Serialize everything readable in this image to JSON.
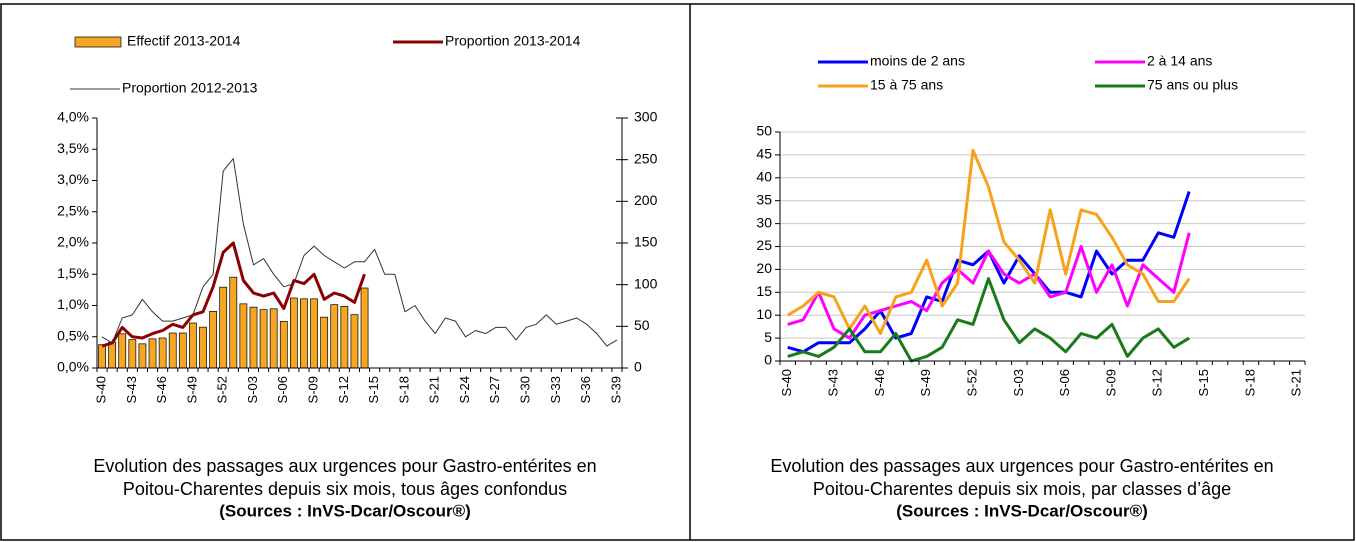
{
  "chart_data": [
    {
      "type": "combo",
      "categories": [
        "S-40",
        null,
        null,
        "S-43",
        null,
        null,
        "S-46",
        null,
        null,
        "S-49",
        null,
        null,
        "S-52",
        null,
        null,
        "S-03",
        null,
        null,
        "S-06",
        null,
        null,
        "S-09",
        null,
        null,
        "S-12",
        null,
        null,
        "S-15",
        null,
        null,
        "S-18",
        null,
        null,
        "S-21",
        null,
        null,
        "S-24",
        null,
        null,
        "S-27",
        null,
        null,
        "S-30",
        null,
        null,
        "S-33",
        null,
        null,
        "S-36",
        null,
        null,
        "S-39"
      ],
      "series": [
        {
          "name": "Effectif 2013-2014",
          "type": "bar",
          "axis": "y2",
          "color": "#f5a623",
          "values": [
            28,
            31,
            41,
            34,
            29,
            35,
            36,
            42,
            42,
            54,
            49,
            68,
            97,
            109,
            77,
            73,
            70,
            71,
            56,
            84,
            83,
            83,
            61,
            76,
            74,
            64,
            96,
            null,
            null,
            null,
            null,
            null,
            null,
            null,
            null,
            null,
            null,
            null,
            null,
            null,
            null,
            null,
            null,
            null,
            null,
            null,
            null,
            null,
            null,
            null,
            null,
            null
          ]
        },
        {
          "name": "Proportion 2013-2014",
          "type": "line",
          "color": "#8b0000",
          "values": [
            0.35,
            0.4,
            0.65,
            0.5,
            0.48,
            0.55,
            0.6,
            0.7,
            0.65,
            0.85,
            0.9,
            1.3,
            1.85,
            2.0,
            1.4,
            1.2,
            1.15,
            1.2,
            0.95,
            1.4,
            1.35,
            1.5,
            1.1,
            1.2,
            1.15,
            1.05,
            1.5,
            null,
            null,
            null,
            null,
            null,
            null,
            null,
            null,
            null,
            null,
            null,
            null,
            null,
            null,
            null,
            null,
            null,
            null,
            null,
            null,
            null,
            null,
            null,
            null,
            null
          ]
        },
        {
          "name": "Proportion 2012-2013",
          "type": "line",
          "color": "#333333",
          "values": [
            0.5,
            0.4,
            0.8,
            0.85,
            1.1,
            0.9,
            0.75,
            0.75,
            0.8,
            0.85,
            1.3,
            1.5,
            3.15,
            3.35,
            2.3,
            1.65,
            1.75,
            1.5,
            1.3,
            1.35,
            1.8,
            1.95,
            1.8,
            1.7,
            1.6,
            1.7,
            1.7,
            1.9,
            1.5,
            1.5,
            0.9,
            1.0,
            0.75,
            0.55,
            0.8,
            0.75,
            0.5,
            0.6,
            0.55,
            0.65,
            0.65,
            0.45,
            0.65,
            0.7,
            0.85,
            0.7,
            0.75,
            0.8,
            0.7,
            0.55,
            0.35,
            0.45
          ]
        }
      ],
      "ylim": [
        0,
        4
      ],
      "yticks": [
        {
          "value": 0,
          "label": "0,0%"
        },
        {
          "value": 0.5,
          "label": "0,5%"
        },
        {
          "value": 1,
          "label": "1,0%"
        },
        {
          "value": 1.5,
          "label": "1,5%"
        },
        {
          "value": 2,
          "label": "2,0%"
        },
        {
          "value": 2.5,
          "label": "2,5%"
        },
        {
          "value": 3,
          "label": "3,0%"
        },
        {
          "value": 3.5,
          "label": "3,5%"
        },
        {
          "value": 4,
          "label": "4,0%"
        }
      ],
      "y2lim": [
        0,
        300
      ],
      "y2ticks": [
        0,
        50,
        100,
        150,
        200,
        250,
        300
      ],
      "grid": false,
      "caption": [
        "Evolution des passages aux urgences pour Gastro-entérites en",
        "Poitou-Charentes depuis six mois, tous âges confondus"
      ],
      "source": "(Sources : InVS-Dcar/Oscour®)"
    },
    {
      "type": "line",
      "categories": [
        "S-40",
        null,
        null,
        "S-43",
        null,
        null,
        "S-46",
        null,
        null,
        "S-49",
        null,
        null,
        "S-52",
        null,
        null,
        "S-03",
        null,
        null,
        "S-06",
        null,
        null,
        "S-09",
        null,
        null,
        "S-12",
        null,
        null,
        "S-15",
        null,
        null,
        "S-18",
        null,
        null,
        "S-21"
      ],
      "series": [
        {
          "name": "moins de 2 ans",
          "color": "#0000ff",
          "values": [
            3,
            2,
            4,
            4,
            4,
            7,
            11,
            5,
            6,
            14,
            13,
            22,
            21,
            24,
            17,
            23,
            19,
            15,
            15,
            14,
            24,
            19,
            22,
            22,
            28,
            27,
            37,
            null,
            null,
            null,
            null,
            null,
            null,
            null
          ]
        },
        {
          "name": "2 à 14 ans",
          "color": "#ff00ff",
          "values": [
            8,
            9,
            15,
            7,
            5,
            10,
            11,
            12,
            13,
            11,
            17,
            20,
            17,
            24,
            19,
            17,
            19,
            14,
            15,
            25,
            15,
            21,
            12,
            21,
            18,
            15,
            28,
            null,
            null,
            null,
            null,
            null,
            null,
            null
          ]
        },
        {
          "name": "15 à 75 ans",
          "color": "#f7a21b",
          "values": [
            10,
            12,
            15,
            14,
            7,
            12,
            6,
            14,
            15,
            22,
            12,
            17,
            46,
            38,
            26,
            22,
            17,
            33,
            19,
            33,
            32,
            27,
            21,
            19,
            13,
            13,
            18,
            null,
            null,
            null,
            null,
            null,
            null,
            null
          ]
        },
        {
          "name": "75 ans ou plus",
          "color": "#1a7a1a",
          "values": [
            1,
            2,
            1,
            3,
            7,
            2,
            2,
            6,
            0,
            1,
            3,
            9,
            8,
            18,
            9,
            4,
            7,
            5,
            2,
            6,
            5,
            8,
            1,
            5,
            7,
            3,
            5,
            null,
            null,
            null,
            null,
            null,
            null,
            null
          ]
        }
      ],
      "ylim": [
        0,
        50
      ],
      "yticks": [
        0,
        5,
        10,
        15,
        20,
        25,
        30,
        35,
        40,
        45,
        50
      ],
      "grid": true,
      "caption": [
        "Evolution des passages aux urgences pour Gastro-entérites en",
        "Poitou-Charentes depuis six mois, par classes d’âge"
      ],
      "source": "(Sources : InVS-Dcar/Oscour®)"
    }
  ]
}
